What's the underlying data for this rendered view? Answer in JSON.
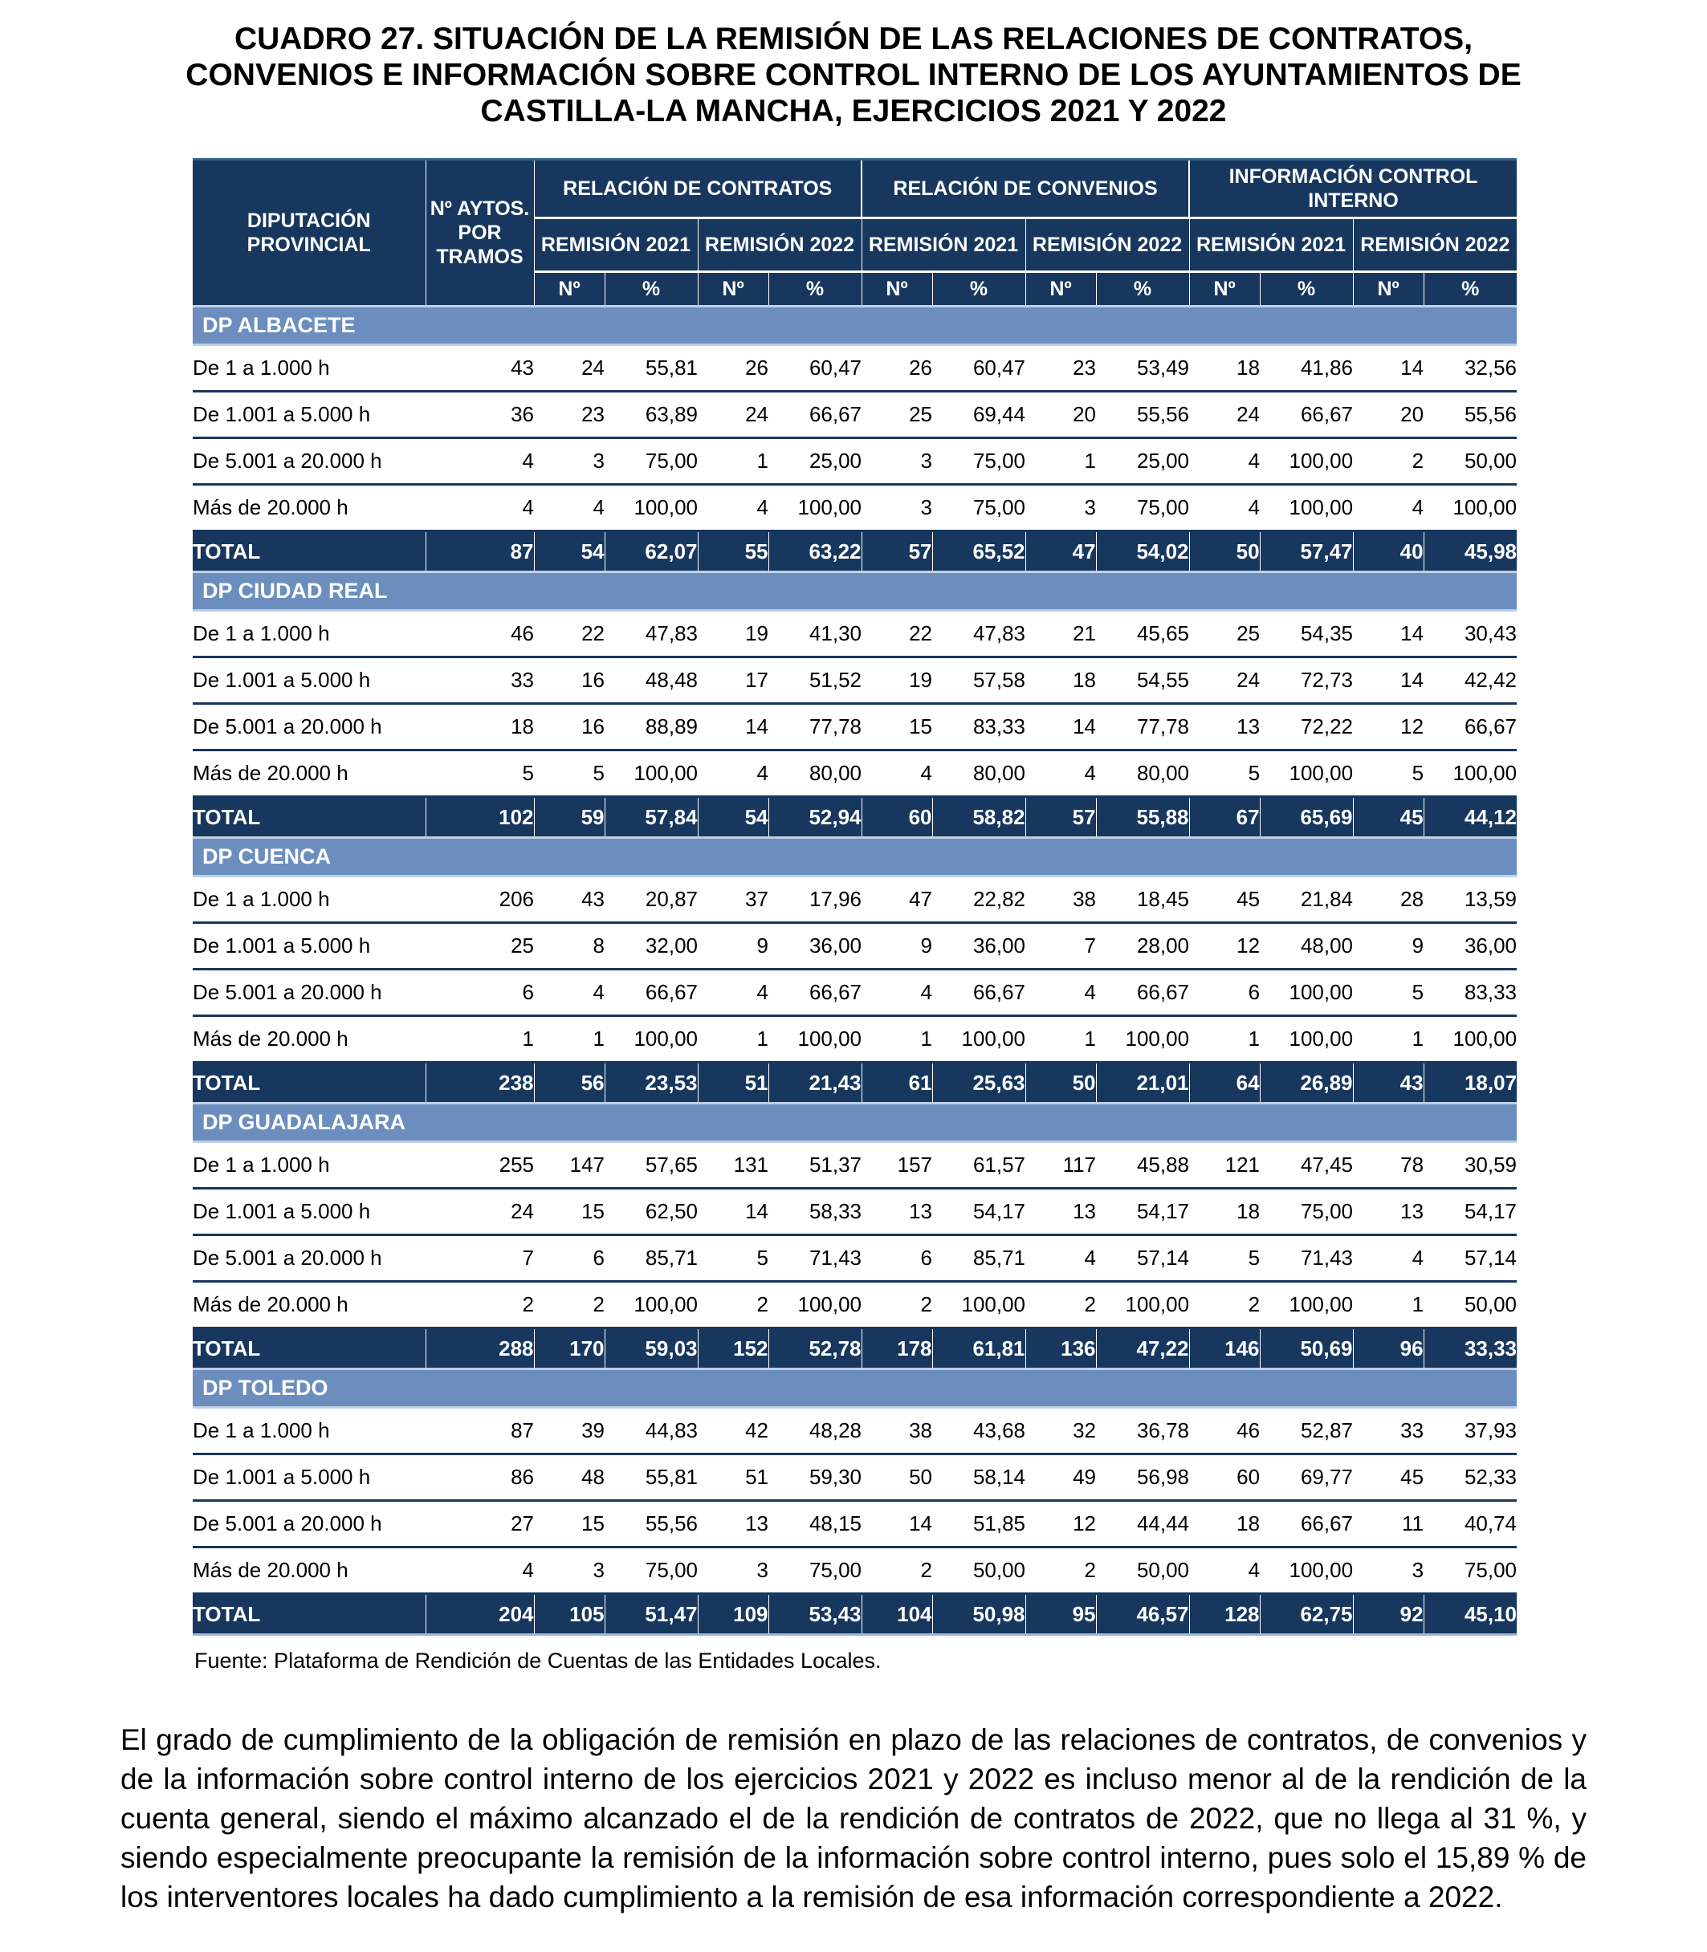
{
  "title": {
    "lines": [
      "CUADRO 27. SITUACIÓN DE LA REMISIÓN DE LAS RELACIONES DE CONTRATOS,",
      "CONVENIOS E INFORMACIÓN SOBRE CONTROL INTERNO DE LOS AYUNTAMIENTOS DE",
      "CASTILLA-LA MANCHA, EJERCICIOS 2021 Y 2022"
    ]
  },
  "colors": {
    "header_navy": "#17375E",
    "section_steel_blue": "#6C8EBF",
    "light_rule": "#BFD0E4",
    "text_on_dark": "#FFFFFF"
  },
  "table": {
    "header": {
      "diputacion": "DIPUTACIÓN PROVINCIAL",
      "aytos": "Nº AYTOS. POR TRAMOS",
      "groups": [
        "RELACIÓN DE CONTRATOS",
        "RELACIÓN DE CONVENIOS",
        "INFORMACIÓN CONTROL INTERNO"
      ],
      "remision_2021": "REMISIÓN 2021",
      "remision_2022": "REMISIÓN 2022",
      "num": "Nº",
      "pct": "%"
    },
    "sections": [
      {
        "name": "DP ALBACETE",
        "rows": [
          {
            "label": "De 1 a 1.000 h",
            "values": [
              "43",
              "24",
              "55,81",
              "26",
              "60,47",
              "26",
              "60,47",
              "23",
              "53,49",
              "18",
              "41,86",
              "14",
              "32,56"
            ]
          },
          {
            "label": "De 1.001 a 5.000 h",
            "values": [
              "36",
              "23",
              "63,89",
              "24",
              "66,67",
              "25",
              "69,44",
              "20",
              "55,56",
              "24",
              "66,67",
              "20",
              "55,56"
            ]
          },
          {
            "label": "De 5.001 a 20.000 h",
            "values": [
              "4",
              "3",
              "75,00",
              "1",
              "25,00",
              "3",
              "75,00",
              "1",
              "25,00",
              "4",
              "100,00",
              "2",
              "50,00"
            ]
          },
          {
            "label": "Más de 20.000 h",
            "values": [
              "4",
              "4",
              "100,00",
              "4",
              "100,00",
              "3",
              "75,00",
              "3",
              "75,00",
              "4",
              "100,00",
              "4",
              "100,00"
            ]
          }
        ],
        "total_label": "TOTAL",
        "total": [
          "87",
          "54",
          "62,07",
          "55",
          "63,22",
          "57",
          "65,52",
          "47",
          "54,02",
          "50",
          "57,47",
          "40",
          "45,98"
        ]
      },
      {
        "name": "DP CIUDAD REAL",
        "rows": [
          {
            "label": "De 1 a 1.000 h",
            "values": [
              "46",
              "22",
              "47,83",
              "19",
              "41,30",
              "22",
              "47,83",
              "21",
              "45,65",
              "25",
              "54,35",
              "14",
              "30,43"
            ]
          },
          {
            "label": "De 1.001 a 5.000 h",
            "values": [
              "33",
              "16",
              "48,48",
              "17",
              "51,52",
              "19",
              "57,58",
              "18",
              "54,55",
              "24",
              "72,73",
              "14",
              "42,42"
            ]
          },
          {
            "label": "De 5.001 a 20.000 h",
            "values": [
              "18",
              "16",
              "88,89",
              "14",
              "77,78",
              "15",
              "83,33",
              "14",
              "77,78",
              "13",
              "72,22",
              "12",
              "66,67"
            ]
          },
          {
            "label": "Más de 20.000 h",
            "values": [
              "5",
              "5",
              "100,00",
              "4",
              "80,00",
              "4",
              "80,00",
              "4",
              "80,00",
              "5",
              "100,00",
              "5",
              "100,00"
            ]
          }
        ],
        "total_label": "TOTAL",
        "total": [
          "102",
          "59",
          "57,84",
          "54",
          "52,94",
          "60",
          "58,82",
          "57",
          "55,88",
          "67",
          "65,69",
          "45",
          "44,12"
        ]
      },
      {
        "name": "DP CUENCA",
        "rows": [
          {
            "label": "De 1 a 1.000 h",
            "values": [
              "206",
              "43",
              "20,87",
              "37",
              "17,96",
              "47",
              "22,82",
              "38",
              "18,45",
              "45",
              "21,84",
              "28",
              "13,59"
            ]
          },
          {
            "label": "De 1.001 a 5.000 h",
            "values": [
              "25",
              "8",
              "32,00",
              "9",
              "36,00",
              "9",
              "36,00",
              "7",
              "28,00",
              "12",
              "48,00",
              "9",
              "36,00"
            ]
          },
          {
            "label": "De 5.001 a 20.000 h",
            "values": [
              "6",
              "4",
              "66,67",
              "4",
              "66,67",
              "4",
              "66,67",
              "4",
              "66,67",
              "6",
              "100,00",
              "5",
              "83,33"
            ]
          },
          {
            "label": "Más de 20.000 h",
            "values": [
              "1",
              "1",
              "100,00",
              "1",
              "100,00",
              "1",
              "100,00",
              "1",
              "100,00",
              "1",
              "100,00",
              "1",
              "100,00"
            ]
          }
        ],
        "total_label": "TOTAL",
        "total": [
          "238",
          "56",
          "23,53",
          "51",
          "21,43",
          "61",
          "25,63",
          "50",
          "21,01",
          "64",
          "26,89",
          "43",
          "18,07"
        ]
      },
      {
        "name": "DP GUADALAJARA",
        "rows": [
          {
            "label": "De 1 a 1.000 h",
            "values": [
              "255",
              "147",
              "57,65",
              "131",
              "51,37",
              "157",
              "61,57",
              "117",
              "45,88",
              "121",
              "47,45",
              "78",
              "30,59"
            ]
          },
          {
            "label": "De 1.001 a 5.000 h",
            "values": [
              "24",
              "15",
              "62,50",
              "14",
              "58,33",
              "13",
              "54,17",
              "13",
              "54,17",
              "18",
              "75,00",
              "13",
              "54,17"
            ]
          },
          {
            "label": "De 5.001 a 20.000 h",
            "values": [
              "7",
              "6",
              "85,71",
              "5",
              "71,43",
              "6",
              "85,71",
              "4",
              "57,14",
              "5",
              "71,43",
              "4",
              "57,14"
            ]
          },
          {
            "label": "Más de 20.000 h",
            "values": [
              "2",
              "2",
              "100,00",
              "2",
              "100,00",
              "2",
              "100,00",
              "2",
              "100,00",
              "2",
              "100,00",
              "1",
              "50,00"
            ]
          }
        ],
        "total_label": "TOTAL",
        "total": [
          "288",
          "170",
          "59,03",
          "152",
          "52,78",
          "178",
          "61,81",
          "136",
          "47,22",
          "146",
          "50,69",
          "96",
          "33,33"
        ]
      },
      {
        "name": "DP TOLEDO",
        "rows": [
          {
            "label": "De 1 a 1.000 h",
            "values": [
              "87",
              "39",
              "44,83",
              "42",
              "48,28",
              "38",
              "43,68",
              "32",
              "36,78",
              "46",
              "52,87",
              "33",
              "37,93"
            ]
          },
          {
            "label": "De 1.001 a 5.000 h",
            "values": [
              "86",
              "48",
              "55,81",
              "51",
              "59,30",
              "50",
              "58,14",
              "49",
              "56,98",
              "60",
              "69,77",
              "45",
              "52,33"
            ]
          },
          {
            "label": "De 5.001 a 20.000 h",
            "values": [
              "27",
              "15",
              "55,56",
              "13",
              "48,15",
              "14",
              "51,85",
              "12",
              "44,44",
              "18",
              "66,67",
              "11",
              "40,74"
            ]
          },
          {
            "label": "Más de 20.000 h",
            "values": [
              "4",
              "3",
              "75,00",
              "3",
              "75,00",
              "2",
              "50,00",
              "2",
              "50,00",
              "4",
              "100,00",
              "3",
              "75,00"
            ]
          }
        ],
        "total_label": "TOTAL",
        "total": [
          "204",
          "105",
          "51,47",
          "109",
          "53,43",
          "104",
          "50,98",
          "95",
          "46,57",
          "128",
          "62,75",
          "92",
          "45,10"
        ]
      }
    ]
  },
  "fuente": "Fuente: Plataforma de Rendición de Cuentas de las Entidades Locales.",
  "paragraph": "El grado de cumplimiento de la obligación de remisión en plazo de las relaciones de contratos, de convenios y de la información sobre control interno de los ejercicios 2021 y 2022 es incluso menor al de la rendición de la cuenta general, siendo el máximo alcanzado el de la rendición de contratos de 2022, que no llega al 31 %, y siendo especialmente preocupante la remisión de la información sobre control interno, pues solo el 15,89 % de los interventores locales ha dado cumplimiento a la remisión de esa información correspondiente a 2022."
}
